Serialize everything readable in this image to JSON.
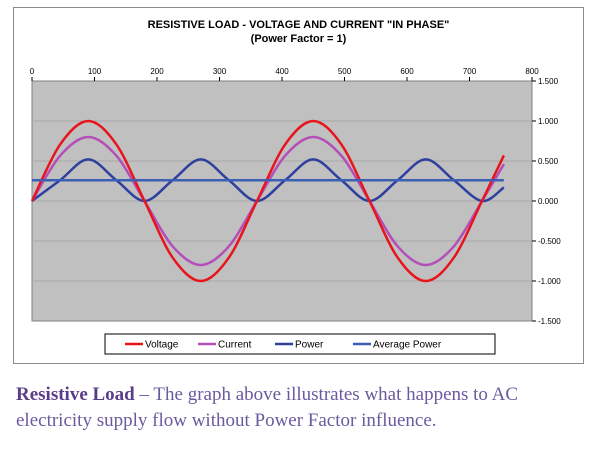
{
  "chart_data": {
    "type": "line",
    "title": "RESISTIVE LOAD - VOLTAGE AND CURRENT \"IN PHASE\"",
    "subtitle": "(Power Factor = 1)",
    "xlim": [
      0,
      800
    ],
    "ylim": [
      -1.5,
      1.5
    ],
    "x_ticks": [
      0,
      100,
      200,
      300,
      400,
      500,
      600,
      700,
      800
    ],
    "y_ticks": [
      1.5,
      1.0,
      0.5,
      0.0,
      -0.5,
      -1.0,
      -1.5
    ],
    "y_tick_labels": [
      "1.500",
      "1.000",
      "0.500",
      "0.000",
      "-0.500",
      "-1.000",
      "-1.500"
    ],
    "x_axis_position": "top",
    "y_axis_position": "right",
    "plot_background": "#c0c0c0",
    "legend_position": "bottom",
    "x": [
      0,
      45,
      90,
      135,
      180,
      225,
      270,
      315,
      360,
      405,
      450,
      495,
      540,
      585,
      630,
      675,
      720,
      755
    ],
    "series": [
      {
        "name": "Voltage",
        "color": "#e8141c",
        "values": [
          0,
          0.707,
          1.0,
          0.707,
          0,
          -0.707,
          -1.0,
          -0.707,
          0,
          0.707,
          1.0,
          0.707,
          0,
          -0.707,
          -1.0,
          -0.707,
          0,
          0.57
        ]
      },
      {
        "name": "Current",
        "color": "#b44fb8",
        "values": [
          0,
          0.566,
          0.8,
          0.566,
          0,
          -0.566,
          -0.8,
          -0.566,
          0,
          0.566,
          0.8,
          0.566,
          0,
          -0.566,
          -0.8,
          -0.566,
          0,
          0.46
        ]
      },
      {
        "name": "Power",
        "color": "#2e3f9e",
        "values": [
          0,
          0.26,
          0.52,
          0.26,
          0,
          0.26,
          0.52,
          0.26,
          0,
          0.26,
          0.52,
          0.26,
          0,
          0.26,
          0.52,
          0.26,
          0,
          0.17
        ]
      },
      {
        "name": "Average Power",
        "color": "#3c5fb4",
        "values": [
          0.26,
          0.26,
          0.26,
          0.26,
          0.26,
          0.26,
          0.26,
          0.26,
          0.26,
          0.26,
          0.26,
          0.26,
          0.26,
          0.26,
          0.26,
          0.26,
          0.26,
          0.26
        ]
      }
    ]
  },
  "caption": {
    "bold": "Resistive Load",
    "text": " – The graph above illustrates what happens to AC electricity supply flow without Power Factor influence."
  }
}
